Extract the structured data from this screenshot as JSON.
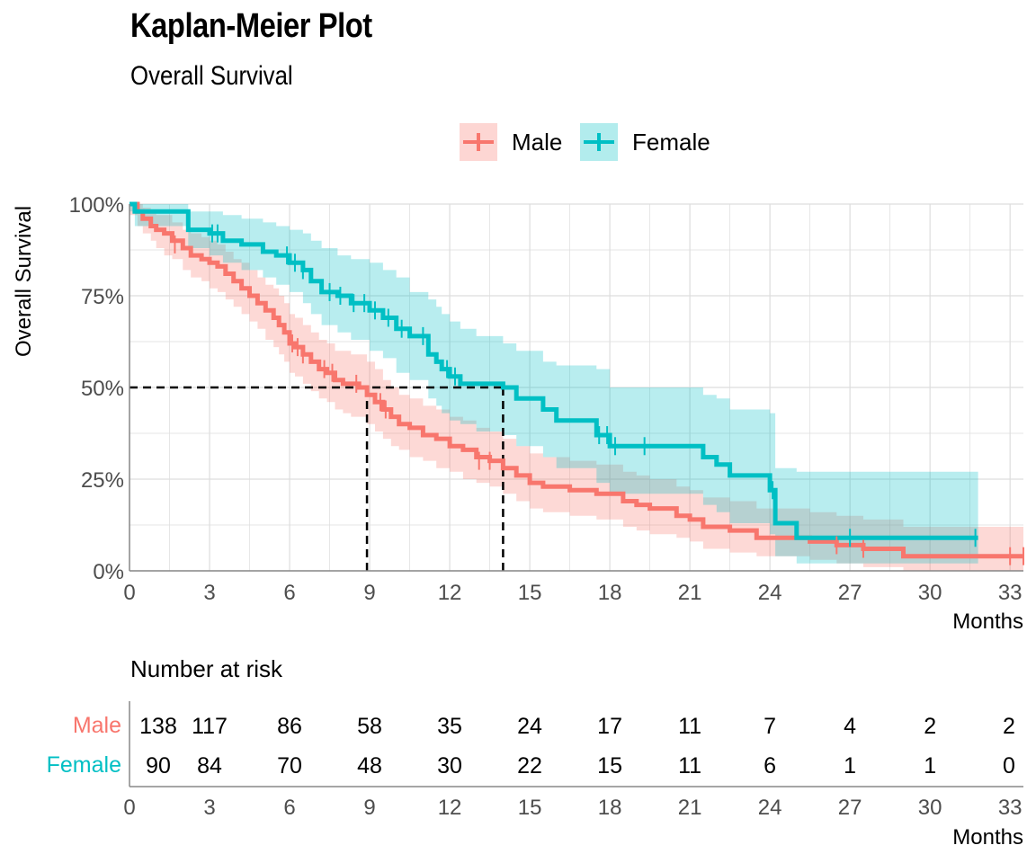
{
  "title": "Kaplan-Meier Plot",
  "subtitle": "Overall Survival",
  "colors": {
    "male": "#F8766D",
    "female": "#00BFC4",
    "grid": "#dddddd",
    "axis_text": "#4d4d4d"
  },
  "legend": {
    "position": "top",
    "items": [
      "Male",
      "Female"
    ]
  },
  "chart_data": {
    "type": "line",
    "title": "Kaplan-Meier Plot",
    "subtitle": "Overall Survival",
    "xlabel": "Months",
    "ylabel": "Overall Survival",
    "xlim": [
      0,
      33.5
    ],
    "ylim": [
      0,
      1
    ],
    "x_ticks": [
      0,
      3,
      6,
      9,
      12,
      15,
      18,
      21,
      24,
      27,
      30,
      33
    ],
    "y_ticks": [
      0,
      0.25,
      0.5,
      0.75,
      1
    ],
    "y_tick_labels": [
      "0%",
      "25%",
      "50%",
      "75%",
      "100%"
    ],
    "grid": true,
    "median_survival": {
      "Male": 8.9,
      "Female": 14.0
    },
    "series": [
      {
        "name": "Male",
        "x": [
          0,
          0.3,
          0.5,
          0.8,
          1.0,
          1.3,
          1.6,
          2.0,
          2.3,
          2.7,
          3.0,
          3.3,
          3.6,
          3.9,
          4.2,
          4.5,
          4.8,
          5.1,
          5.4,
          5.6,
          5.8,
          6.0,
          6.2,
          6.5,
          6.8,
          7.1,
          7.4,
          7.7,
          8.0,
          8.3,
          8.6,
          8.9,
          9.2,
          9.5,
          9.8,
          10.1,
          10.5,
          11.0,
          11.5,
          12.0,
          12.5,
          13.0,
          13.5,
          14.0,
          14.5,
          15.0,
          15.5,
          16.5,
          17.5,
          18.5,
          19.0,
          19.5,
          20.5,
          21.0,
          21.5,
          22.5,
          23.5,
          25.5,
          26.5,
          27.5,
          29.0,
          33.5
        ],
        "y": [
          1.0,
          0.98,
          0.96,
          0.94,
          0.93,
          0.92,
          0.9,
          0.88,
          0.86,
          0.85,
          0.84,
          0.83,
          0.81,
          0.79,
          0.77,
          0.75,
          0.73,
          0.71,
          0.69,
          0.67,
          0.65,
          0.62,
          0.61,
          0.59,
          0.57,
          0.55,
          0.54,
          0.52,
          0.51,
          0.51,
          0.5,
          0.48,
          0.46,
          0.44,
          0.42,
          0.4,
          0.39,
          0.37,
          0.36,
          0.34,
          0.33,
          0.31,
          0.3,
          0.28,
          0.26,
          0.24,
          0.23,
          0.22,
          0.21,
          0.19,
          0.18,
          0.17,
          0.15,
          0.14,
          0.12,
          0.11,
          0.09,
          0.08,
          0.07,
          0.06,
          0.04,
          0.04
        ],
        "upper": [
          1.0,
          1.0,
          0.99,
          0.98,
          0.97,
          0.97,
          0.95,
          0.93,
          0.92,
          0.91,
          0.9,
          0.89,
          0.87,
          0.85,
          0.84,
          0.82,
          0.8,
          0.78,
          0.77,
          0.75,
          0.73,
          0.7,
          0.69,
          0.67,
          0.65,
          0.63,
          0.62,
          0.6,
          0.6,
          0.59,
          0.59,
          0.57,
          0.55,
          0.52,
          0.5,
          0.48,
          0.47,
          0.45,
          0.44,
          0.42,
          0.41,
          0.39,
          0.38,
          0.36,
          0.34,
          0.32,
          0.31,
          0.3,
          0.29,
          0.27,
          0.26,
          0.25,
          0.23,
          0.22,
          0.2,
          0.19,
          0.17,
          0.16,
          0.15,
          0.14,
          0.12,
          0.12
        ],
        "lower": [
          0.97,
          0.94,
          0.92,
          0.9,
          0.88,
          0.86,
          0.85,
          0.82,
          0.8,
          0.79,
          0.77,
          0.76,
          0.74,
          0.72,
          0.7,
          0.68,
          0.66,
          0.63,
          0.61,
          0.59,
          0.57,
          0.54,
          0.53,
          0.51,
          0.49,
          0.47,
          0.46,
          0.44,
          0.43,
          0.42,
          0.42,
          0.4,
          0.38,
          0.36,
          0.34,
          0.33,
          0.31,
          0.3,
          0.28,
          0.27,
          0.25,
          0.24,
          0.23,
          0.21,
          0.19,
          0.17,
          0.16,
          0.15,
          0.14,
          0.12,
          0.11,
          0.1,
          0.09,
          0.08,
          0.06,
          0.05,
          0.04,
          0.03,
          0.02,
          0.01,
          0.0,
          0.0
        ],
        "censored": [
          [
            1.7,
            0.89
          ],
          [
            6.1,
            0.62
          ],
          [
            6.3,
            0.61
          ],
          [
            6.5,
            0.59
          ],
          [
            7.3,
            0.55
          ],
          [
            7.6,
            0.54
          ],
          [
            8.5,
            0.51
          ],
          [
            9.4,
            0.46
          ],
          [
            9.6,
            0.44
          ],
          [
            13.1,
            0.3
          ],
          [
            13.5,
            0.3
          ],
          [
            26.5,
            0.07
          ],
          [
            27.5,
            0.06
          ],
          [
            33.0,
            0.04
          ],
          [
            33.5,
            0.04
          ]
        ]
      },
      {
        "name": "Female",
        "x": [
          0,
          0.2,
          2.0,
          2.2,
          3.0,
          3.5,
          4.2,
          5.0,
          5.5,
          6.0,
          6.5,
          6.8,
          7.2,
          7.8,
          8.3,
          9.0,
          9.5,
          10.0,
          10.5,
          11.2,
          11.5,
          11.7,
          12.0,
          12.4,
          13.0,
          14.0,
          14.5,
          15.5,
          16.0,
          17.5,
          18.0,
          21.0,
          21.5,
          22.0,
          22.5,
          24.0,
          24.2,
          25.0,
          26.5,
          31.8
        ],
        "y": [
          1.0,
          0.98,
          0.98,
          0.93,
          0.92,
          0.9,
          0.89,
          0.87,
          0.86,
          0.84,
          0.82,
          0.79,
          0.76,
          0.75,
          0.73,
          0.71,
          0.69,
          0.66,
          0.64,
          0.59,
          0.57,
          0.55,
          0.53,
          0.51,
          0.51,
          0.5,
          0.47,
          0.44,
          0.41,
          0.37,
          0.34,
          0.34,
          0.31,
          0.29,
          0.26,
          0.22,
          0.13,
          0.09,
          0.09,
          0.09
        ],
        "upper": [
          1.0,
          1.0,
          1.0,
          0.98,
          0.98,
          0.97,
          0.96,
          0.95,
          0.94,
          0.93,
          0.92,
          0.9,
          0.88,
          0.86,
          0.85,
          0.84,
          0.82,
          0.8,
          0.76,
          0.74,
          0.72,
          0.7,
          0.68,
          0.66,
          0.64,
          0.62,
          0.6,
          0.57,
          0.56,
          0.55,
          0.5,
          0.5,
          0.48,
          0.47,
          0.44,
          0.43,
          0.28,
          0.27,
          0.27,
          0.27
        ],
        "lower": [
          0.98,
          0.94,
          0.94,
          0.88,
          0.86,
          0.84,
          0.82,
          0.8,
          0.78,
          0.76,
          0.73,
          0.7,
          0.67,
          0.65,
          0.63,
          0.6,
          0.58,
          0.54,
          0.52,
          0.47,
          0.45,
          0.43,
          0.41,
          0.4,
          0.38,
          0.37,
          0.34,
          0.31,
          0.28,
          0.24,
          0.21,
          0.21,
          0.18,
          0.16,
          0.13,
          0.1,
          0.04,
          0.02,
          0.02,
          0.02
        ]
      }
    ],
    "risk_table": {
      "title": "Number at risk",
      "times": [
        0,
        3,
        6,
        9,
        12,
        15,
        18,
        21,
        24,
        27,
        30,
        33
      ],
      "rows": [
        {
          "name": "Male",
          "values": [
            138,
            117,
            86,
            58,
            35,
            24,
            17,
            11,
            7,
            4,
            2,
            2
          ]
        },
        {
          "name": "Female",
          "values": [
            90,
            84,
            70,
            48,
            30,
            22,
            15,
            11,
            6,
            1,
            1,
            0
          ]
        }
      ],
      "xlabel": "Months"
    }
  }
}
